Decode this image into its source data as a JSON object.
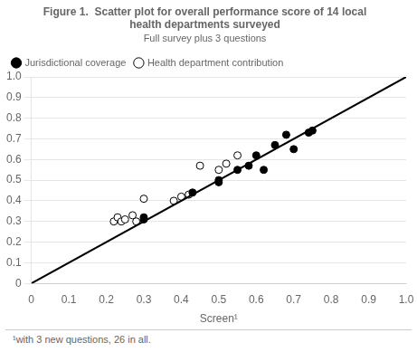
{
  "chart_data": {
    "type": "scatter",
    "title": "Figure 1.  Scatter plot for overall performance score of 14 local\nhealth departments surveyed",
    "subtitle": "Full survey plus 3 questions",
    "xlabel": "Screen¹",
    "footnote": "¹with 3 new questions, 26 in all.",
    "series": [
      {
        "type": "line",
        "color": "#000000",
        "line_style": "solid",
        "x": [
          0.0,
          1.0
        ],
        "values": [
          0.0,
          1.0
        ]
      },
      {
        "name": "Jurisdictional coverage",
        "type": "scatter",
        "color": "#000000",
        "marker": "circle",
        "x": [
          0.3,
          0.3,
          0.43,
          0.5,
          0.5,
          0.55,
          0.58,
          0.6,
          0.62,
          0.65,
          0.68,
          0.7,
          0.74,
          0.75
        ],
        "values": [
          0.31,
          0.32,
          0.44,
          0.49,
          0.5,
          0.55,
          0.57,
          0.62,
          0.55,
          0.67,
          0.72,
          0.65,
          0.73,
          0.74
        ]
      },
      {
        "name": "Health department contribution",
        "type": "scatter",
        "color": "#000000",
        "marker": "circle_open",
        "x": [
          0.22,
          0.23,
          0.24,
          0.25,
          0.27,
          0.28,
          0.3,
          0.38,
          0.4,
          0.42,
          0.45,
          0.5,
          0.52,
          0.55
        ],
        "values": [
          0.3,
          0.32,
          0.3,
          0.31,
          0.33,
          0.3,
          0.41,
          0.4,
          0.42,
          0.43,
          0.57,
          0.55,
          0.58,
          0.62
        ]
      }
    ],
    "xlim": [
      0.0,
      1.0
    ],
    "ylim": [
      0.0,
      1.0
    ],
    "xticks": [
      0,
      0.1,
      0.2,
      0.3,
      0.4,
      0.5,
      0.6,
      0.7,
      0.8,
      0.9,
      {
        "value": 1.0,
        "label": "1.0"
      }
    ],
    "yticks": [
      0,
      0.1,
      0.2,
      0.3,
      0.4,
      0.5,
      0.6,
      0.7,
      0.8,
      0.9,
      {
        "value": 1.0,
        "label": "1.0"
      }
    ],
    "grid": "y",
    "legend": "upper left"
  }
}
